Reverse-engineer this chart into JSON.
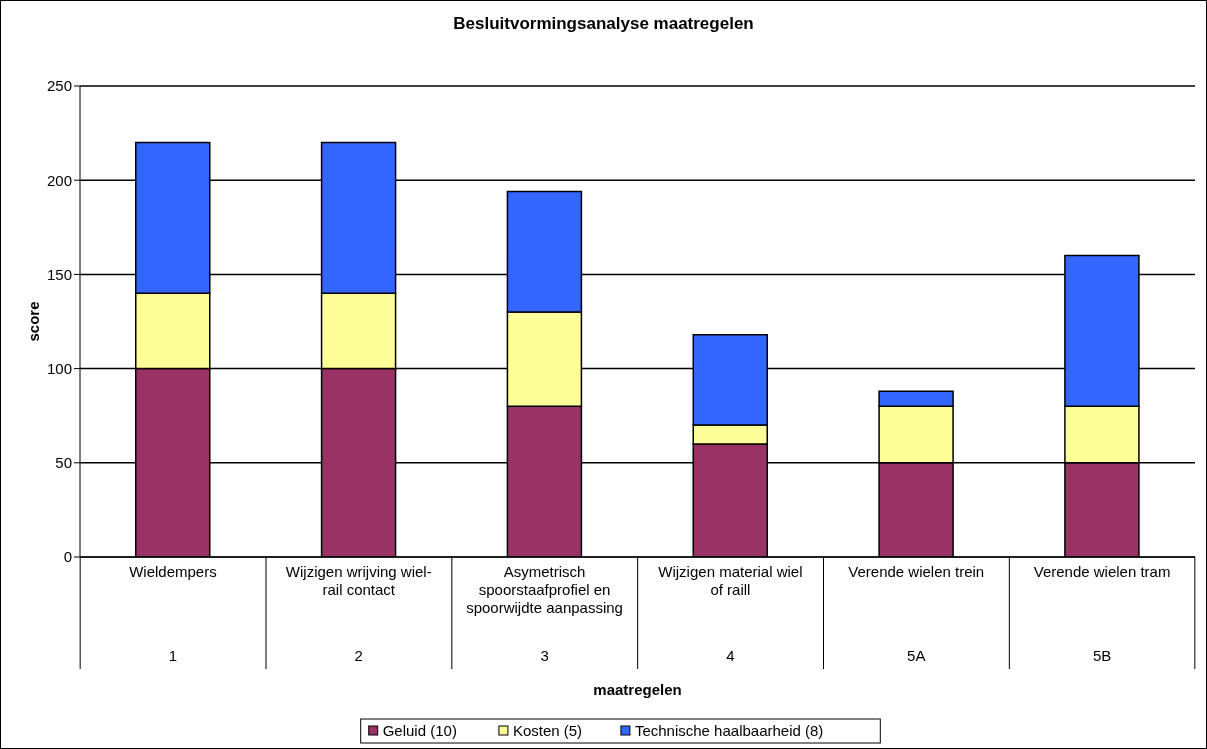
{
  "chart_data": {
    "type": "bar",
    "title": "Besluitvormingsanalyse maatregelen",
    "xlabel": "maatregelen",
    "ylabel": "score",
    "categories": [
      "Wieldempers",
      "Wijzigen wrijving wiel-rail contact",
      "Asymetrisch spoorstaafprofiel en spoorwijdte aanpassing",
      "Wijzigen material wiel of raill",
      "Verende wielen trein",
      "Verende wielen tram"
    ],
    "series": [
      {
        "name": "Geluid (10)",
        "color": "#993366",
        "values": [
          100,
          100,
          80,
          60,
          50,
          50
        ]
      },
      {
        "name": "Kosten (5)",
        "color": "#ffff99",
        "values": [
          40,
          40,
          50,
          10,
          30,
          30
        ]
      },
      {
        "name": "Technische haalbaarheid (8)",
        "color": "#3366ff",
        "values": [
          80,
          80,
          64,
          48,
          8,
          80
        ]
      }
    ],
    "stacked": true,
    "ylim": [
      0,
      250
    ],
    "yticks": [
      0,
      50,
      100,
      150,
      200,
      250
    ],
    "grid": "y",
    "legend": "bottom",
    "annotations": [
      "1",
      "2",
      "3",
      "4",
      "5A",
      "5B"
    ]
  }
}
